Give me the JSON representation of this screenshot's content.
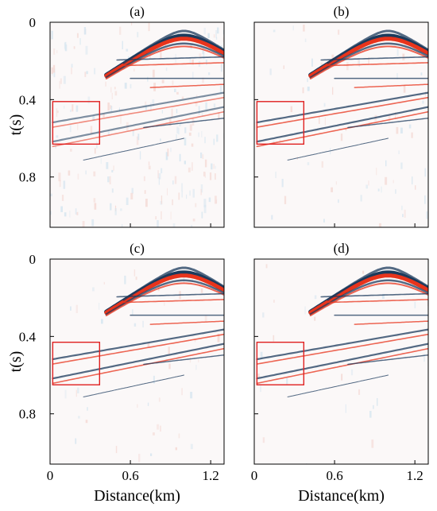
{
  "chart_data": [
    {
      "type": "heatmap",
      "title": "(a)",
      "ylabel": "t(s)",
      "xlabel": "",
      "xlim": [
        0,
        1.3
      ],
      "ylim": [
        0,
        1.06
      ],
      "x_ticks": [
        "0",
        "0.6",
        "1.2"
      ],
      "x_tick_values": [
        0,
        0.6,
        1.2
      ],
      "x_ticklabels_visible": false,
      "y_ticks": [
        "0",
        "0.4",
        "0.8"
      ],
      "y_tick_values": [
        0,
        0.4,
        0.8
      ],
      "y_ticklabels_visible": true,
      "highlight_box": {
        "x": [
          0.02,
          0.37
        ],
        "y": [
          0.41,
          0.63
        ],
        "color": "#e02020"
      },
      "noise_level": 0.9
    },
    {
      "type": "heatmap",
      "title": "(b)",
      "ylabel": "",
      "xlabel": "",
      "xlim": [
        0,
        1.3
      ],
      "ylim": [
        0,
        1.06
      ],
      "x_ticks": [
        "0",
        "0.6",
        "1.2"
      ],
      "x_tick_values": [
        0,
        0.6,
        1.2
      ],
      "x_ticklabels_visible": false,
      "y_ticks": [
        "0",
        "0.4",
        "0.8"
      ],
      "y_tick_values": [
        0,
        0.4,
        0.8
      ],
      "y_ticklabels_visible": false,
      "highlight_box": {
        "x": [
          0.02,
          0.37
        ],
        "y": [
          0.41,
          0.63
        ],
        "color": "#e02020"
      },
      "noise_level": 0.3
    },
    {
      "type": "heatmap",
      "title": "(c)",
      "ylabel": "t(s)",
      "xlabel": "Distance(km)",
      "xlim": [
        0,
        1.3
      ],
      "ylim": [
        0,
        1.06
      ],
      "x_ticks": [
        "0",
        "0.6",
        "1.2"
      ],
      "x_tick_values": [
        0,
        0.6,
        1.2
      ],
      "x_ticklabels_visible": true,
      "y_ticks": [
        "0",
        "0.4",
        "0.8"
      ],
      "y_tick_values": [
        0,
        0.4,
        0.8
      ],
      "y_ticklabels_visible": true,
      "highlight_box": {
        "x": [
          0.02,
          0.37
        ],
        "y": [
          0.43,
          0.65
        ],
        "color": "#e02020"
      },
      "noise_level": 0.2
    },
    {
      "type": "heatmap",
      "title": "(d)",
      "ylabel": "",
      "xlabel": "Distance(km)",
      "xlim": [
        0,
        1.3
      ],
      "ylim": [
        0,
        1.06
      ],
      "x_ticks": [
        "0",
        "0.6",
        "1.2"
      ],
      "x_tick_values": [
        0,
        0.6,
        1.2
      ],
      "x_ticklabels_visible": true,
      "y_ticks": [
        "0",
        "0.4",
        "0.8"
      ],
      "y_tick_values": [
        0,
        0.4,
        0.8
      ],
      "y_ticklabels_visible": false,
      "highlight_box": {
        "x": [
          0.02,
          0.37
        ],
        "y": [
          0.43,
          0.65
        ],
        "color": "#e02020"
      },
      "noise_level": 0.1
    }
  ],
  "colors": {
    "positive": "#e8341c",
    "negative": "#1b3a5c",
    "background": "#ffffff",
    "frame": "#000000"
  }
}
